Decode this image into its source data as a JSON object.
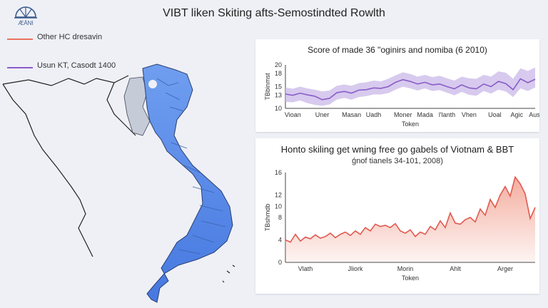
{
  "page": {
    "title": "VIBT liken Skiting afts-Semostindted Rowlth",
    "logo_text": "ÆÄNI",
    "legend": [
      {
        "label": "Other HC dresavin",
        "color": "#e8735e"
      },
      {
        "label": "Usun KT, Casodt 1400",
        "color": "#8a5cc8"
      }
    ]
  },
  "chart_data": [
    {
      "type": "line",
      "title": "Score of made 36 \"oginirs and nomiba (6 2010)",
      "subtitle": "",
      "xlabel": "Token",
      "ylabel": "TBbinmst",
      "ylim": [
        10,
        20
      ],
      "yticks": [
        10,
        13,
        15,
        18,
        20
      ],
      "xlim": [
        0,
        34
      ],
      "categories": [
        "Vioan",
        "Uner",
        "Masan",
        "Uadh",
        "Moner",
        "Mada",
        "l'lanth",
        "Vhen",
        "Uoal",
        "Agic",
        "Ausl"
      ],
      "category_positions": [
        1,
        5,
        9,
        12,
        16,
        19,
        22,
        25,
        28.5,
        31.5,
        34
      ],
      "series": [
        {
          "name": "",
          "color": "#8a5cc8",
          "band_color": "#c9b8e8",
          "x": [
            0,
            1,
            2,
            3,
            4,
            5,
            6,
            7,
            8,
            9,
            10,
            11,
            12,
            13,
            14,
            15,
            16,
            17,
            18,
            19,
            20,
            21,
            22,
            23,
            24,
            25,
            26,
            27,
            28,
            29,
            30,
            31,
            32,
            33,
            34
          ],
          "values": [
            13.3,
            13.0,
            13.5,
            13.1,
            12.8,
            12.0,
            12.3,
            13.6,
            13.9,
            13.5,
            14.2,
            14.3,
            14.7,
            14.6,
            15.0,
            16.0,
            16.6,
            16.2,
            15.6,
            16.0,
            15.4,
            15.6,
            15.0,
            14.5,
            15.4,
            14.7,
            14.5,
            15.6,
            15.0,
            16.2,
            15.7,
            14.3,
            16.8,
            15.9,
            16.7
          ],
          "lower": [
            11.5,
            11.4,
            11.8,
            11.2,
            10.8,
            10.6,
            10.9,
            12.0,
            12.4,
            12.0,
            12.6,
            12.8,
            13.2,
            13.2,
            13.5,
            14.3,
            15.0,
            14.6,
            14.1,
            14.6,
            14.0,
            14.2,
            13.6,
            13.0,
            13.8,
            13.1,
            12.9,
            14.0,
            13.4,
            14.3,
            13.9,
            12.6,
            14.6,
            14.0,
            14.8
          ],
          "upper": [
            14.8,
            14.5,
            15.0,
            14.6,
            14.3,
            13.9,
            14.1,
            15.2,
            15.5,
            15.2,
            15.8,
            16.0,
            16.4,
            16.2,
            16.8,
            17.6,
            18.3,
            17.9,
            17.3,
            17.7,
            17.2,
            17.5,
            16.9,
            16.4,
            17.3,
            16.9,
            16.8,
            17.7,
            17.3,
            18.5,
            18.2,
            16.8,
            19.2,
            18.6,
            19.4
          ]
        }
      ]
    },
    {
      "type": "area",
      "title": "Honto skiling get wning free go gabels of Viotnam & BBT",
      "subtitle": "ǵnof tianels 34-101, 2008)",
      "xlabel": "Token",
      "ylabel": "TBshmdb",
      "ylim": [
        0,
        16
      ],
      "yticks": [
        0,
        4,
        8,
        10,
        12,
        16
      ],
      "xlim": [
        0,
        100
      ],
      "categories": [
        "Vlath",
        "Jliork",
        "Morin",
        "Ahlt",
        "Arger"
      ],
      "category_positions": [
        8,
        28,
        48,
        68,
        88
      ],
      "series": [
        {
          "name": "",
          "color": "#e05a4f",
          "fill_color": "#f3a99a",
          "x": [
            0,
            2,
            4,
            6,
            8,
            10,
            12,
            14,
            16,
            18,
            20,
            22,
            24,
            26,
            28,
            30,
            32,
            34,
            36,
            38,
            40,
            42,
            44,
            46,
            48,
            50,
            52,
            54,
            56,
            58,
            60,
            62,
            64,
            66,
            68,
            70,
            72,
            74,
            76,
            78,
            80,
            82,
            84,
            86,
            88,
            90,
            92,
            94,
            96,
            98,
            100
          ],
          "values": [
            4.0,
            3.6,
            5.0,
            3.8,
            4.5,
            4.2,
            4.9,
            4.3,
            4.6,
            5.2,
            4.4,
            5.0,
            5.4,
            4.8,
            5.6,
            5.0,
            6.2,
            5.6,
            6.8,
            6.4,
            6.6,
            6.2,
            6.9,
            5.6,
            5.2,
            5.8,
            4.6,
            5.4,
            5.0,
            6.4,
            5.8,
            7.4,
            6.2,
            8.8,
            7.0,
            6.8,
            7.6,
            8.0,
            7.2,
            9.5,
            8.4,
            11.2,
            9.8,
            12.0,
            13.5,
            11.8,
            15.2,
            14.0,
            12.2,
            7.8,
            9.8
          ]
        }
      ]
    }
  ]
}
